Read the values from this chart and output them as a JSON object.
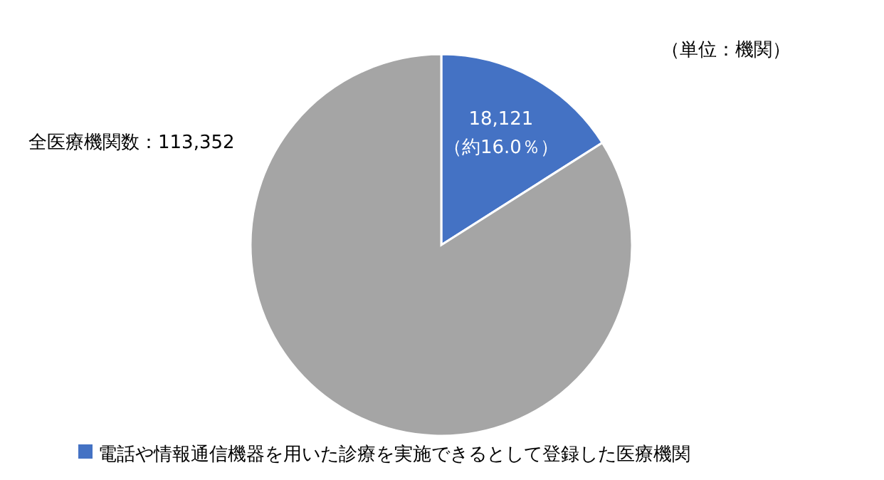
{
  "chart_data": {
    "type": "pie",
    "categories": [
      "電話や情報通信機器を用いた診療を実施できるとして登録した医療機関",
      null
    ],
    "values": [
      16.0,
      84.0
    ],
    "colors": [
      "#4472c4",
      "#a5a5a5"
    ],
    "value_labels": [
      "18,121\n（約16.0％）",
      null
    ],
    "annotations": [
      "（単位：機関）",
      "全医療機関数：113,352"
    ],
    "legend": "bottom"
  }
}
